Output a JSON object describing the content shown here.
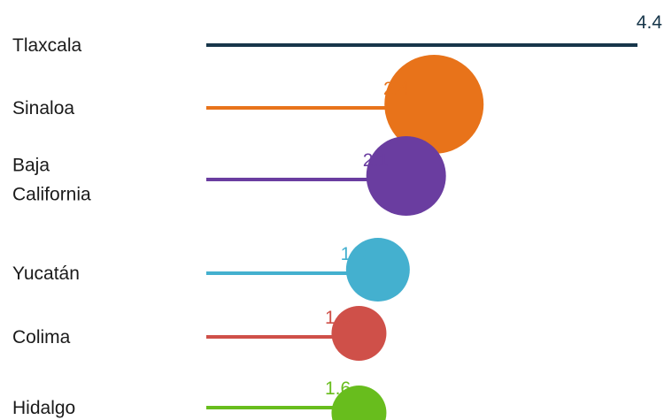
{
  "chart_data": {
    "type": "lollipop-bar",
    "categories": [
      "Tlaxcala",
      "Sinaloa",
      "Baja California",
      "Yucatán",
      "Colima",
      "Hidalgo"
    ],
    "values": [
      4.4,
      2.4,
      2.1,
      1.8,
      1.6,
      1.6
    ],
    "value_labels": [
      "4.4",
      "2.4",
      "2.1",
      "1.8",
      "1.6",
      "1.6"
    ],
    "colors": [
      "#17364a",
      "#e8731a",
      "#6a3da0",
      "#44b0cf",
      "#cf5049",
      "#68bd1d"
    ],
    "xlim": [
      0,
      4.4
    ],
    "grid": false,
    "legend": "none",
    "title": "",
    "xlabel": "",
    "ylabel": ""
  }
}
